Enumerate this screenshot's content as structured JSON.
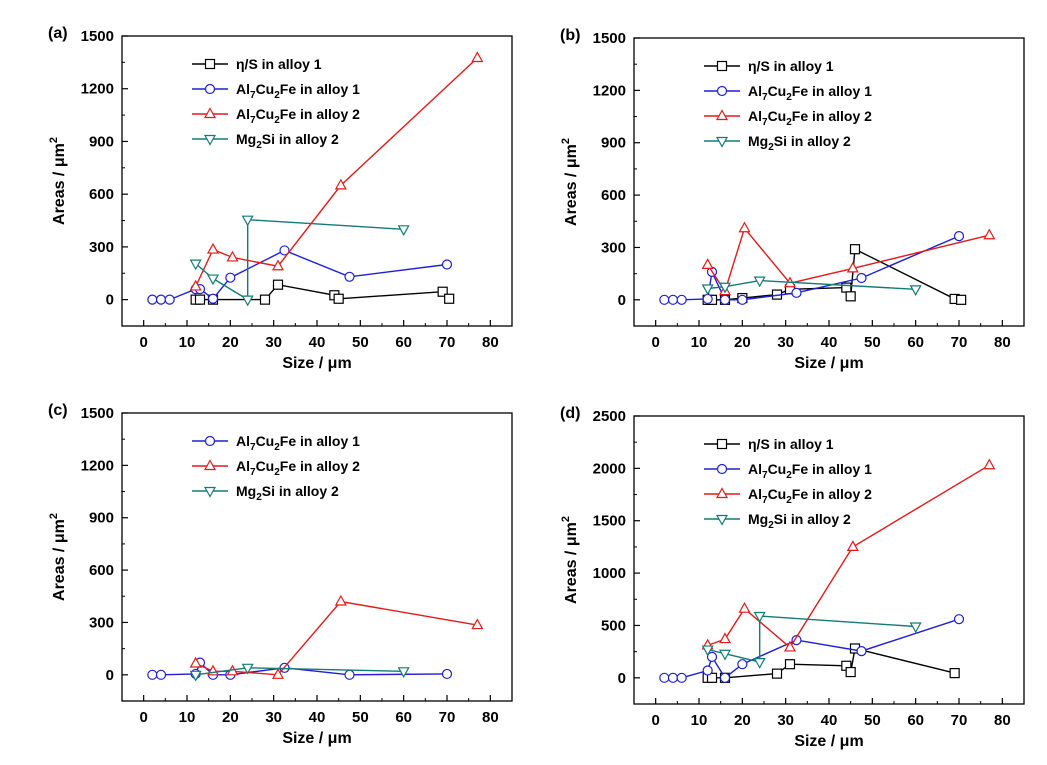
{
  "colors": {
    "eta_s_alloy1": "#000000",
    "al7cu2fe_alloy1": "#1f1fd6",
    "al7cu2fe_alloy2": "#e41a1a",
    "mg2si_alloy2": "#147a78"
  },
  "chart_data": [
    {
      "panel_label": "(a)",
      "type": "line",
      "xlabel": "Size / μm",
      "ylabel_main": "Areas / μm",
      "ylabel_sup": "2",
      "xlim": [
        -5,
        85
      ],
      "ylim": [
        -150,
        1500
      ],
      "xticks": [
        0,
        10,
        20,
        30,
        40,
        50,
        60,
        70,
        80
      ],
      "yticks": [
        0,
        300,
        600,
        900,
        1200,
        1500
      ],
      "legend_position": "top-left",
      "series": [
        {
          "legend_parts": [
            {
              "t": "η/S in alloy 1"
            }
          ],
          "color_key": "eta_s_alloy1",
          "marker": "square",
          "points": [
            [
              12,
              0
            ],
            [
              13,
              0
            ],
            [
              16,
              0
            ],
            [
              28,
              0
            ],
            [
              31,
              85
            ],
            [
              44,
              25
            ],
            [
              45,
              5
            ],
            [
              69,
              45
            ],
            [
              70.5,
              5
            ]
          ]
        },
        {
          "legend_parts": [
            {
              "t": "Al"
            },
            {
              "sub": "7"
            },
            {
              "t": "Cu"
            },
            {
              "sub": "2"
            },
            {
              "t": "Fe in alloy 1"
            }
          ],
          "color_key": "al7cu2fe_alloy1",
          "marker": "circle",
          "points": [
            [
              2,
              0
            ],
            [
              4,
              0
            ],
            [
              6,
              0
            ],
            [
              12,
              60
            ],
            [
              13,
              60
            ],
            [
              16,
              5
            ],
            [
              20,
              125
            ],
            [
              32.5,
              280
            ],
            [
              47.5,
              130
            ],
            [
              70,
              200
            ]
          ]
        },
        {
          "legend_parts": [
            {
              "t": "Al"
            },
            {
              "sub": "7"
            },
            {
              "t": "Cu"
            },
            {
              "sub": "2"
            },
            {
              "t": "Fe in alloy 2"
            }
          ],
          "color_key": "al7cu2fe_alloy2",
          "marker": "triangle-up",
          "points": [
            [
              12,
              75
            ],
            [
              16,
              285
            ],
            [
              20.5,
              240
            ],
            [
              31,
              190
            ],
            [
              45.5,
              650
            ],
            [
              77,
              1375
            ]
          ]
        },
        {
          "legend_parts": [
            {
              "t": "Mg"
            },
            {
              "sub": "2"
            },
            {
              "t": "Si in alloy 2"
            }
          ],
          "color_key": "mg2si_alloy2",
          "marker": "triangle-down",
          "points": [
            [
              12,
              205
            ],
            [
              16,
              120
            ],
            [
              24,
              0
            ],
            [
              24,
              455
            ],
            [
              60,
              400
            ]
          ]
        }
      ]
    },
    {
      "panel_label": "(b)",
      "type": "line",
      "xlabel": "Size / μm",
      "ylabel_main": "Areas / μm",
      "ylabel_sup": "2",
      "xlim": [
        -5,
        85
      ],
      "ylim": [
        -150,
        1500
      ],
      "xticks": [
        0,
        10,
        20,
        30,
        40,
        50,
        60,
        70,
        80
      ],
      "yticks": [
        0,
        300,
        600,
        900,
        1200,
        1500
      ],
      "legend_position": "top-left",
      "series": [
        {
          "legend_parts": [
            {
              "t": "η/S in alloy 1"
            }
          ],
          "color_key": "eta_s_alloy1",
          "marker": "square",
          "points": [
            [
              12,
              0
            ],
            [
              13,
              0
            ],
            [
              16,
              0
            ],
            [
              20,
              10
            ],
            [
              28,
              30
            ],
            [
              31,
              60
            ],
            [
              44,
              70
            ],
            [
              45,
              20
            ],
            [
              46,
              290
            ],
            [
              69,
              5
            ],
            [
              70.5,
              0
            ]
          ]
        },
        {
          "legend_parts": [
            {
              "t": "Al"
            },
            {
              "sub": "7"
            },
            {
              "t": "Cu"
            },
            {
              "sub": "2"
            },
            {
              "t": "Fe in alloy 1"
            }
          ],
          "color_key": "al7cu2fe_alloy1",
          "marker": "circle",
          "points": [
            [
              2,
              0
            ],
            [
              4,
              0
            ],
            [
              6,
              0
            ],
            [
              12,
              5
            ],
            [
              13,
              160
            ],
            [
              16,
              0
            ],
            [
              20,
              0
            ],
            [
              32.5,
              40
            ],
            [
              47.5,
              125
            ],
            [
              70,
              365
            ]
          ]
        },
        {
          "legend_parts": [
            {
              "t": "Al"
            },
            {
              "sub": "7"
            },
            {
              "t": "Cu"
            },
            {
              "sub": "2"
            },
            {
              "t": "Fe in alloy 2"
            }
          ],
          "color_key": "al7cu2fe_alloy2",
          "marker": "triangle-up",
          "points": [
            [
              12,
              200
            ],
            [
              16,
              50
            ],
            [
              20.5,
              410
            ],
            [
              31,
              95
            ],
            [
              45.5,
              180
            ],
            [
              77,
              370
            ]
          ]
        },
        {
          "legend_parts": [
            {
              "t": "Mg"
            },
            {
              "sub": "2"
            },
            {
              "t": "Si in alloy 2"
            }
          ],
          "color_key": "mg2si_alloy2",
          "marker": "triangle-down",
          "points": [
            [
              12,
              65
            ],
            [
              16,
              75
            ],
            [
              24,
              110
            ],
            [
              60,
              60
            ]
          ]
        }
      ]
    },
    {
      "panel_label": "(c)",
      "type": "line",
      "xlabel": "Size / μm",
      "ylabel_main": "Areas / μm",
      "ylabel_sup": "2",
      "xlim": [
        -5,
        85
      ],
      "ylim": [
        -150,
        1500
      ],
      "xticks": [
        0,
        10,
        20,
        30,
        40,
        50,
        60,
        70,
        80
      ],
      "yticks": [
        0,
        300,
        600,
        900,
        1200,
        1500
      ],
      "legend_position": "top-left",
      "series": [
        {
          "legend_parts": [
            {
              "t": "Al"
            },
            {
              "sub": "7"
            },
            {
              "t": "Cu"
            },
            {
              "sub": "2"
            },
            {
              "t": "Fe in alloy 1"
            }
          ],
          "color_key": "al7cu2fe_alloy1",
          "marker": "circle",
          "points": [
            [
              2,
              0
            ],
            [
              4,
              0
            ],
            [
              12,
              5
            ],
            [
              13,
              70
            ],
            [
              16,
              0
            ],
            [
              20,
              0
            ],
            [
              32.5,
              40
            ],
            [
              47.5,
              0
            ],
            [
              70,
              5
            ]
          ]
        },
        {
          "legend_parts": [
            {
              "t": "Al"
            },
            {
              "sub": "7"
            },
            {
              "t": "Cu"
            },
            {
              "sub": "2"
            },
            {
              "t": "Fe in alloy 2"
            }
          ],
          "color_key": "al7cu2fe_alloy2",
          "marker": "triangle-up",
          "points": [
            [
              12,
              65
            ],
            [
              16,
              20
            ],
            [
              20.5,
              20
            ],
            [
              31,
              0
            ],
            [
              45.5,
              420
            ],
            [
              77,
              285
            ]
          ]
        },
        {
          "legend_parts": [
            {
              "t": "Mg"
            },
            {
              "sub": "2"
            },
            {
              "t": "Si in alloy 2"
            }
          ],
          "color_key": "mg2si_alloy2",
          "marker": "triangle-down",
          "points": [
            [
              12,
              0
            ],
            [
              24,
              40
            ],
            [
              60,
              20
            ]
          ]
        }
      ]
    },
    {
      "panel_label": "(d)",
      "type": "line",
      "xlabel": "Size / μm",
      "ylabel_main": "Areas / μm",
      "ylabel_sup": "2",
      "xlim": [
        -5,
        85
      ],
      "ylim": [
        -250,
        2500
      ],
      "xticks": [
        0,
        10,
        20,
        30,
        40,
        50,
        60,
        70,
        80
      ],
      "yticks": [
        0,
        500,
        1000,
        1500,
        2000,
        2500
      ],
      "legend_position": "top-left",
      "series": [
        {
          "legend_parts": [
            {
              "t": "η/S in alloy 1"
            }
          ],
          "color_key": "eta_s_alloy1",
          "marker": "square",
          "points": [
            [
              12,
              0
            ],
            [
              13,
              0
            ],
            [
              16,
              0
            ],
            [
              28,
              40
            ],
            [
              31,
              130
            ],
            [
              44,
              115
            ],
            [
              45,
              55
            ],
            [
              46,
              280
            ],
            [
              69,
              45
            ]
          ]
        },
        {
          "legend_parts": [
            {
              "t": "Al"
            },
            {
              "sub": "7"
            },
            {
              "t": "Cu"
            },
            {
              "sub": "2"
            },
            {
              "t": "Fe in alloy 1"
            }
          ],
          "color_key": "al7cu2fe_alloy1",
          "marker": "circle",
          "points": [
            [
              2,
              0
            ],
            [
              4,
              0
            ],
            [
              6,
              0
            ],
            [
              12,
              70
            ],
            [
              13,
              200
            ],
            [
              16,
              0
            ],
            [
              20,
              130
            ],
            [
              32.5,
              360
            ],
            [
              47.5,
              255
            ],
            [
              70,
              560
            ]
          ]
        },
        {
          "legend_parts": [
            {
              "t": "Al"
            },
            {
              "sub": "7"
            },
            {
              "t": "Cu"
            },
            {
              "sub": "2"
            },
            {
              "t": "Fe in alloy 2"
            }
          ],
          "color_key": "al7cu2fe_alloy2",
          "marker": "triangle-up",
          "points": [
            [
              12,
              310
            ],
            [
              16,
              370
            ],
            [
              20.5,
              660
            ],
            [
              31,
              290
            ],
            [
              45.5,
              1250
            ],
            [
              77,
              2030
            ]
          ]
        },
        {
          "legend_parts": [
            {
              "t": "Mg"
            },
            {
              "sub": "2"
            },
            {
              "t": "Si in alloy 2"
            }
          ],
          "color_key": "mg2si_alloy2",
          "marker": "triangle-down",
          "points": [
            [
              12,
              270
            ],
            [
              16,
              230
            ],
            [
              24,
              150
            ],
            [
              24,
              590
            ],
            [
              60,
              490
            ]
          ]
        }
      ]
    }
  ]
}
